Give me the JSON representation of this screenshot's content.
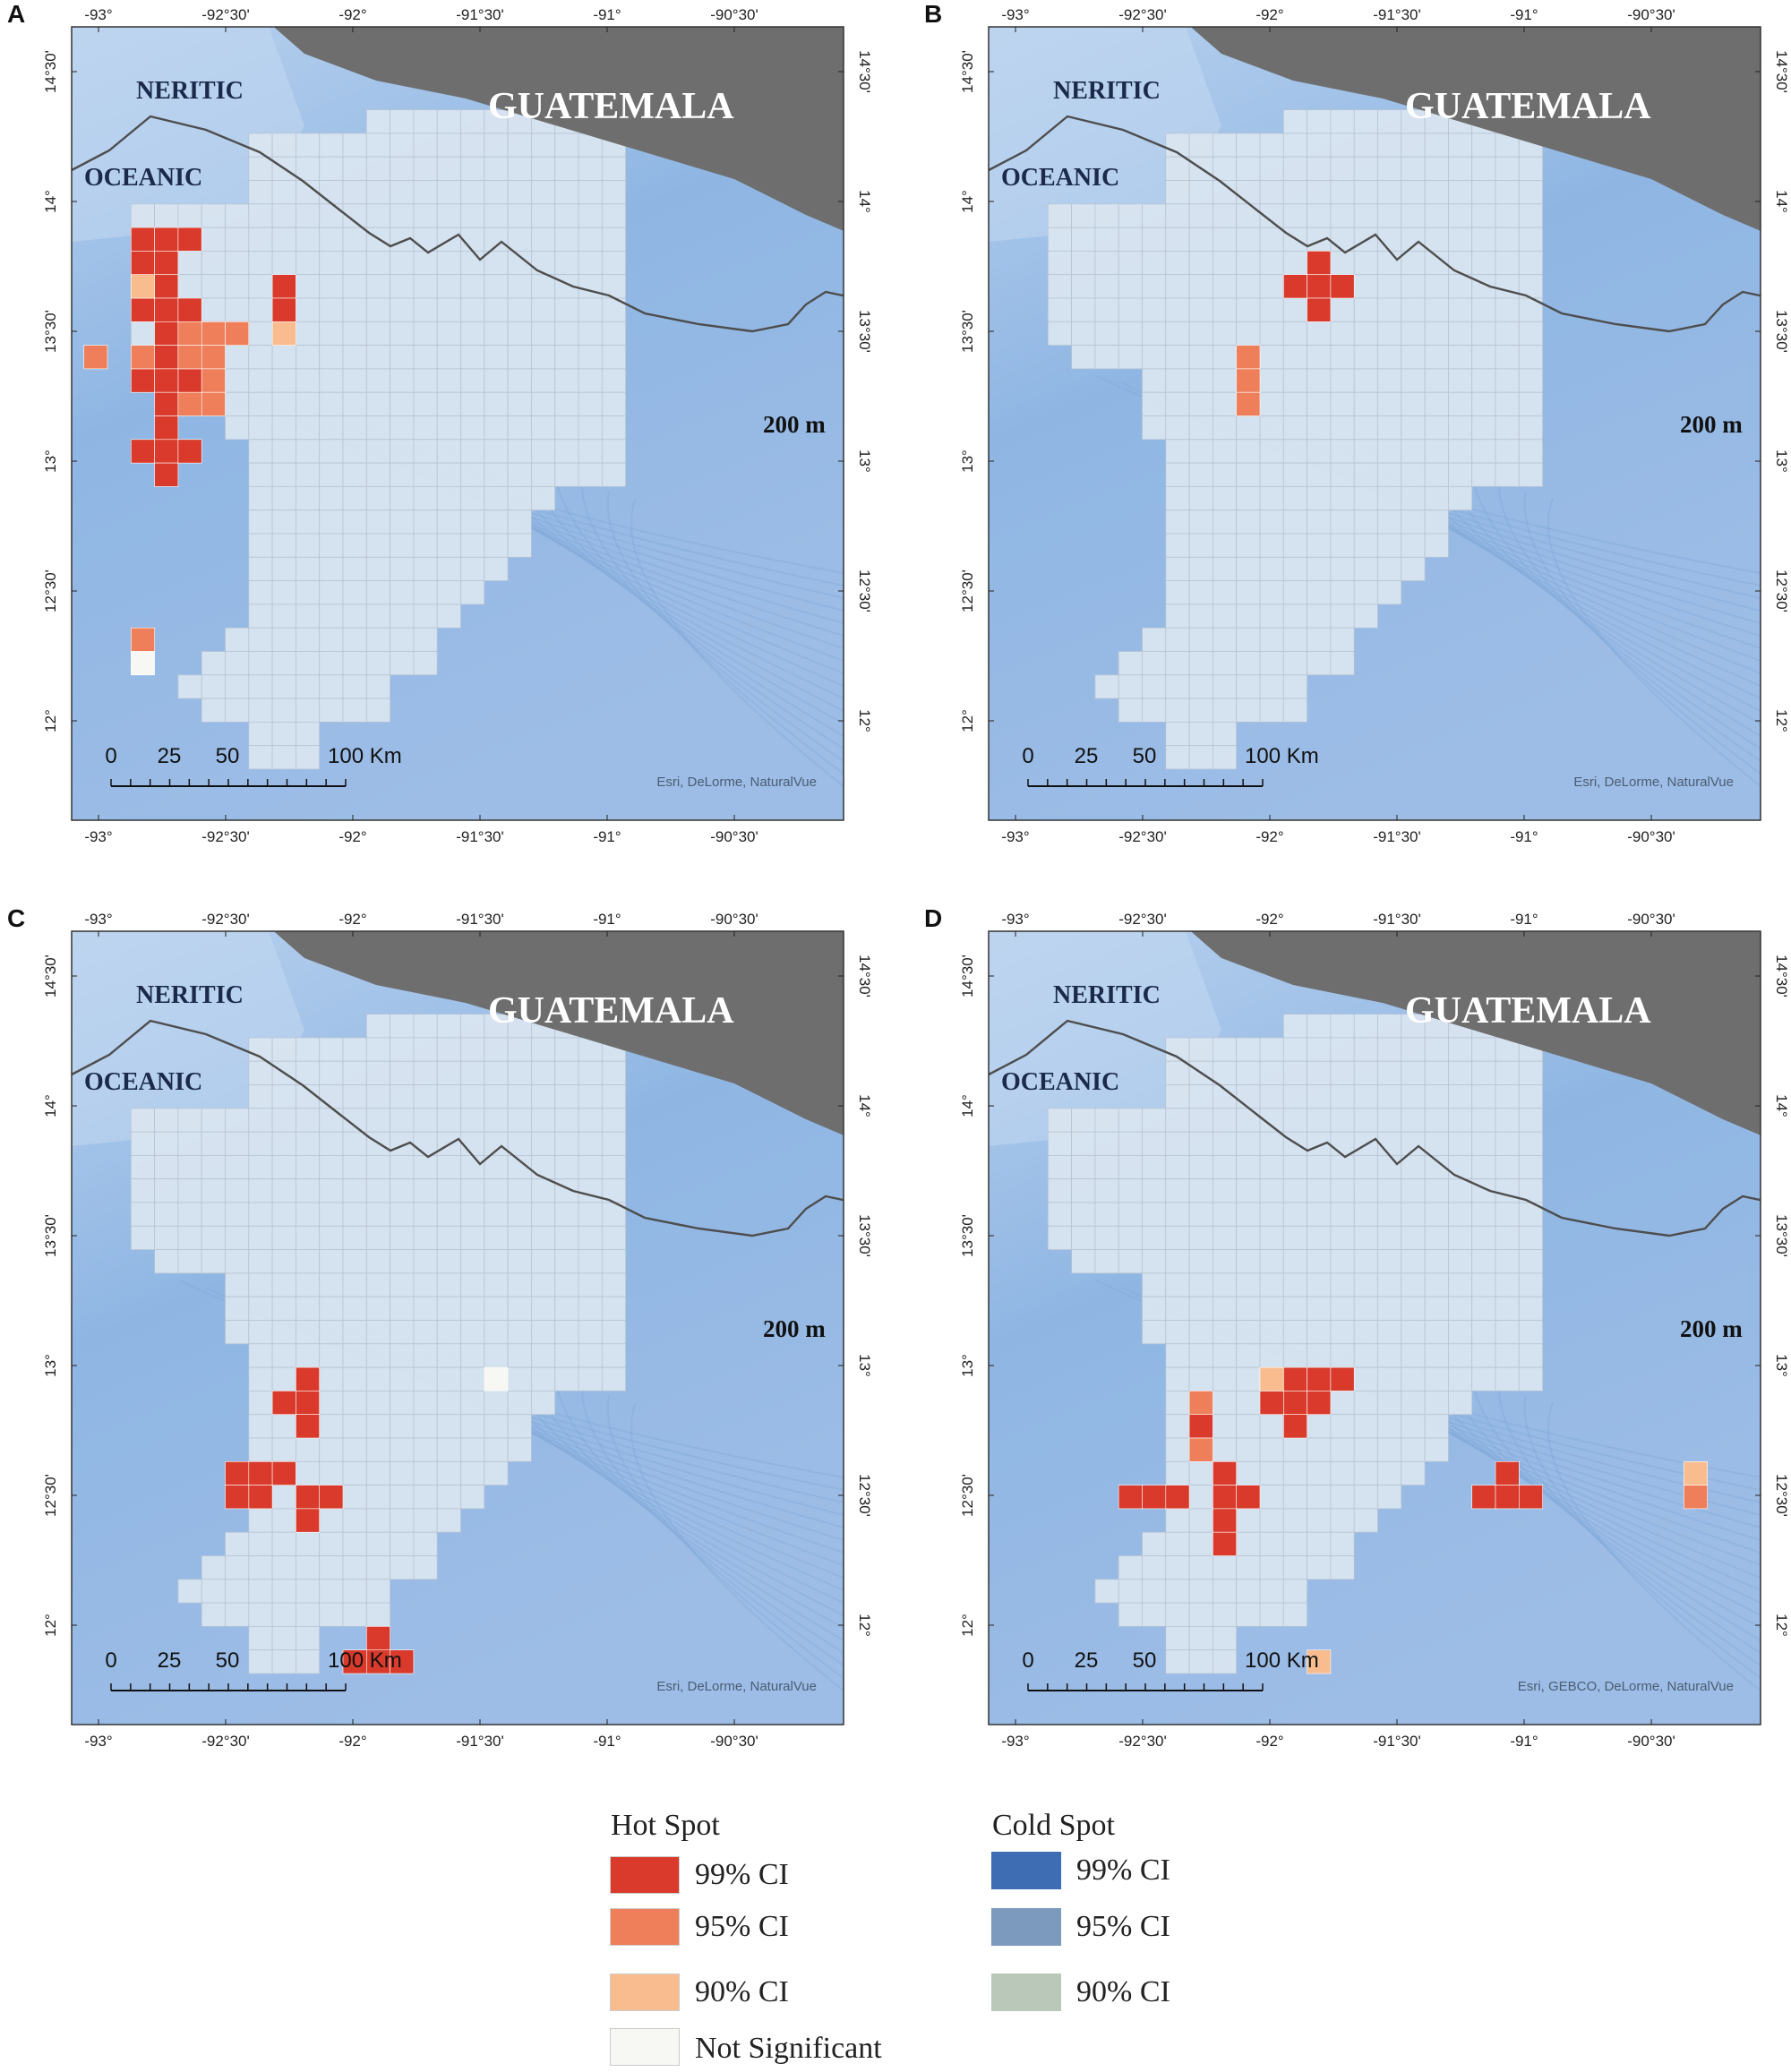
{
  "colors": {
    "ocean": "#8fb6e3",
    "ocean_light": "#b7d0ee",
    "land": "#6e6e6e",
    "grid_fill": "#dbe6f1",
    "grid_line": "#b8c4d2",
    "coast_line": "#4d4d4d",
    "hot_99": "#d93a2b",
    "hot_95": "#ee7f5a",
    "hot_90": "#f8bc8f",
    "not_sig": "#f7f8f4",
    "cold_99": "#3f6db4",
    "cold_95": "#7b9abd",
    "cold_90": "#bac8ba",
    "frame": "#333333"
  },
  "map_labels": {
    "country": "GUATEMALA",
    "neritic": "NERITIC",
    "oceanic": "OCEANIC",
    "depth": "200 m",
    "scale_ticks": [
      "0",
      "25",
      "50",
      "100 Km"
    ]
  },
  "axes": {
    "lon_ticks": [
      "-93°",
      "-92°30'",
      "-92°",
      "-91°30'",
      "-91°",
      "-90°30'"
    ],
    "lat_ticks": [
      "14°30'",
      "14°",
      "13°30'",
      "13°",
      "12°30'",
      "12°"
    ]
  },
  "panels": [
    {
      "letter": "A",
      "attribution": "Esri, DeLorme, NaturalVue",
      "hot": {
        "h99": [
          [
            3,
            13
          ],
          [
            1,
            7
          ],
          [
            1,
            8
          ],
          [
            2,
            7
          ],
          [
            2,
            8
          ],
          [
            3,
            7
          ],
          [
            1,
            10
          ],
          [
            2,
            9
          ],
          [
            2,
            10
          ],
          [
            2,
            11
          ],
          [
            3,
            10
          ],
          [
            1,
            13
          ],
          [
            2,
            12
          ],
          [
            2,
            13
          ],
          [
            2,
            14
          ],
          [
            1,
            16
          ],
          [
            2,
            15
          ],
          [
            2,
            16
          ],
          [
            2,
            17
          ],
          [
            3,
            16
          ],
          [
            7,
            9
          ],
          [
            7,
            10
          ]
        ],
        "h95": [
          [
            4,
            11
          ],
          [
            5,
            11
          ],
          [
            4,
            12
          ],
          [
            4,
            13
          ],
          [
            4,
            14
          ],
          [
            3,
            11
          ],
          [
            3,
            12
          ],
          [
            3,
            14
          ],
          [
            -1,
            12
          ],
          [
            1,
            12
          ],
          [
            1,
            24
          ]
        ],
        "h90": [
          [
            1,
            9
          ],
          [
            7,
            11
          ]
        ]
      },
      "not_sig": [
        [
          1,
          25
        ]
      ]
    },
    {
      "letter": "B",
      "attribution": "Esri, DeLorme, NaturalVue",
      "hot": {
        "h99": [
          [
            12,
            8
          ],
          [
            11,
            9
          ],
          [
            12,
            9
          ],
          [
            13,
            9
          ],
          [
            12,
            10
          ]
        ],
        "h95": [
          [
            9,
            12
          ],
          [
            9,
            13
          ],
          [
            9,
            14
          ]
        ],
        "h90": []
      },
      "not_sig": []
    },
    {
      "letter": "C",
      "attribution": "Esri, DeLorme, NaturalVue",
      "hot": {
        "h99": [
          [
            8,
            17
          ],
          [
            7,
            18
          ],
          [
            8,
            18
          ],
          [
            8,
            19
          ],
          [
            5,
            21
          ],
          [
            6,
            21
          ],
          [
            6,
            22
          ],
          [
            7,
            21
          ],
          [
            5,
            22
          ],
          [
            8,
            22
          ],
          [
            8,
            23
          ],
          [
            9,
            22
          ],
          [
            10,
            29
          ],
          [
            11,
            29
          ],
          [
            12,
            29
          ],
          [
            11,
            28
          ]
        ],
        "h95": [],
        "h90": []
      },
      "not_sig": [
        [
          16,
          17
        ]
      ]
    },
    {
      "letter": "D",
      "attribution": "Esri, GEBCO, DeLorme, NaturalVue",
      "hot": {
        "h99": [
          [
            5,
            22
          ],
          [
            4,
            22
          ],
          [
            6,
            22
          ],
          [
            8,
            21
          ],
          [
            8,
            22
          ],
          [
            9,
            22
          ],
          [
            8,
            23
          ],
          [
            8,
            24
          ],
          [
            10,
            17
          ],
          [
            11,
            17
          ],
          [
            12,
            17
          ],
          [
            13,
            17
          ],
          [
            11,
            18
          ],
          [
            12,
            18
          ],
          [
            10,
            18
          ],
          [
            11,
            19
          ],
          [
            20,
            21
          ],
          [
            19,
            22
          ],
          [
            20,
            22
          ],
          [
            21,
            22
          ],
          [
            7,
            19
          ]
        ],
        "h95": [
          [
            7,
            18
          ],
          [
            7,
            20
          ],
          [
            28,
            22
          ]
        ],
        "h90": [
          [
            10,
            17
          ],
          [
            28,
            21
          ],
          [
            12,
            29
          ]
        ]
      },
      "not_sig": []
    }
  ],
  "legend": {
    "hot_title": "Hot Spot",
    "cold_title": "Cold Spot",
    "hot": [
      {
        "label": "99% CI",
        "color": "#d93a2b"
      },
      {
        "label": "95% CI",
        "color": "#ee7f5a"
      },
      {
        "label": "90% CI",
        "color": "#f8bc8f"
      },
      {
        "label": "Not Significant",
        "color": "#f7f8f4"
      }
    ],
    "cold": [
      {
        "label": "99% CI",
        "color": "#3f6db4"
      },
      {
        "label": "95% CI",
        "color": "#7b9abd"
      },
      {
        "label": "90% CI",
        "color": "#bac8ba"
      }
    ]
  }
}
